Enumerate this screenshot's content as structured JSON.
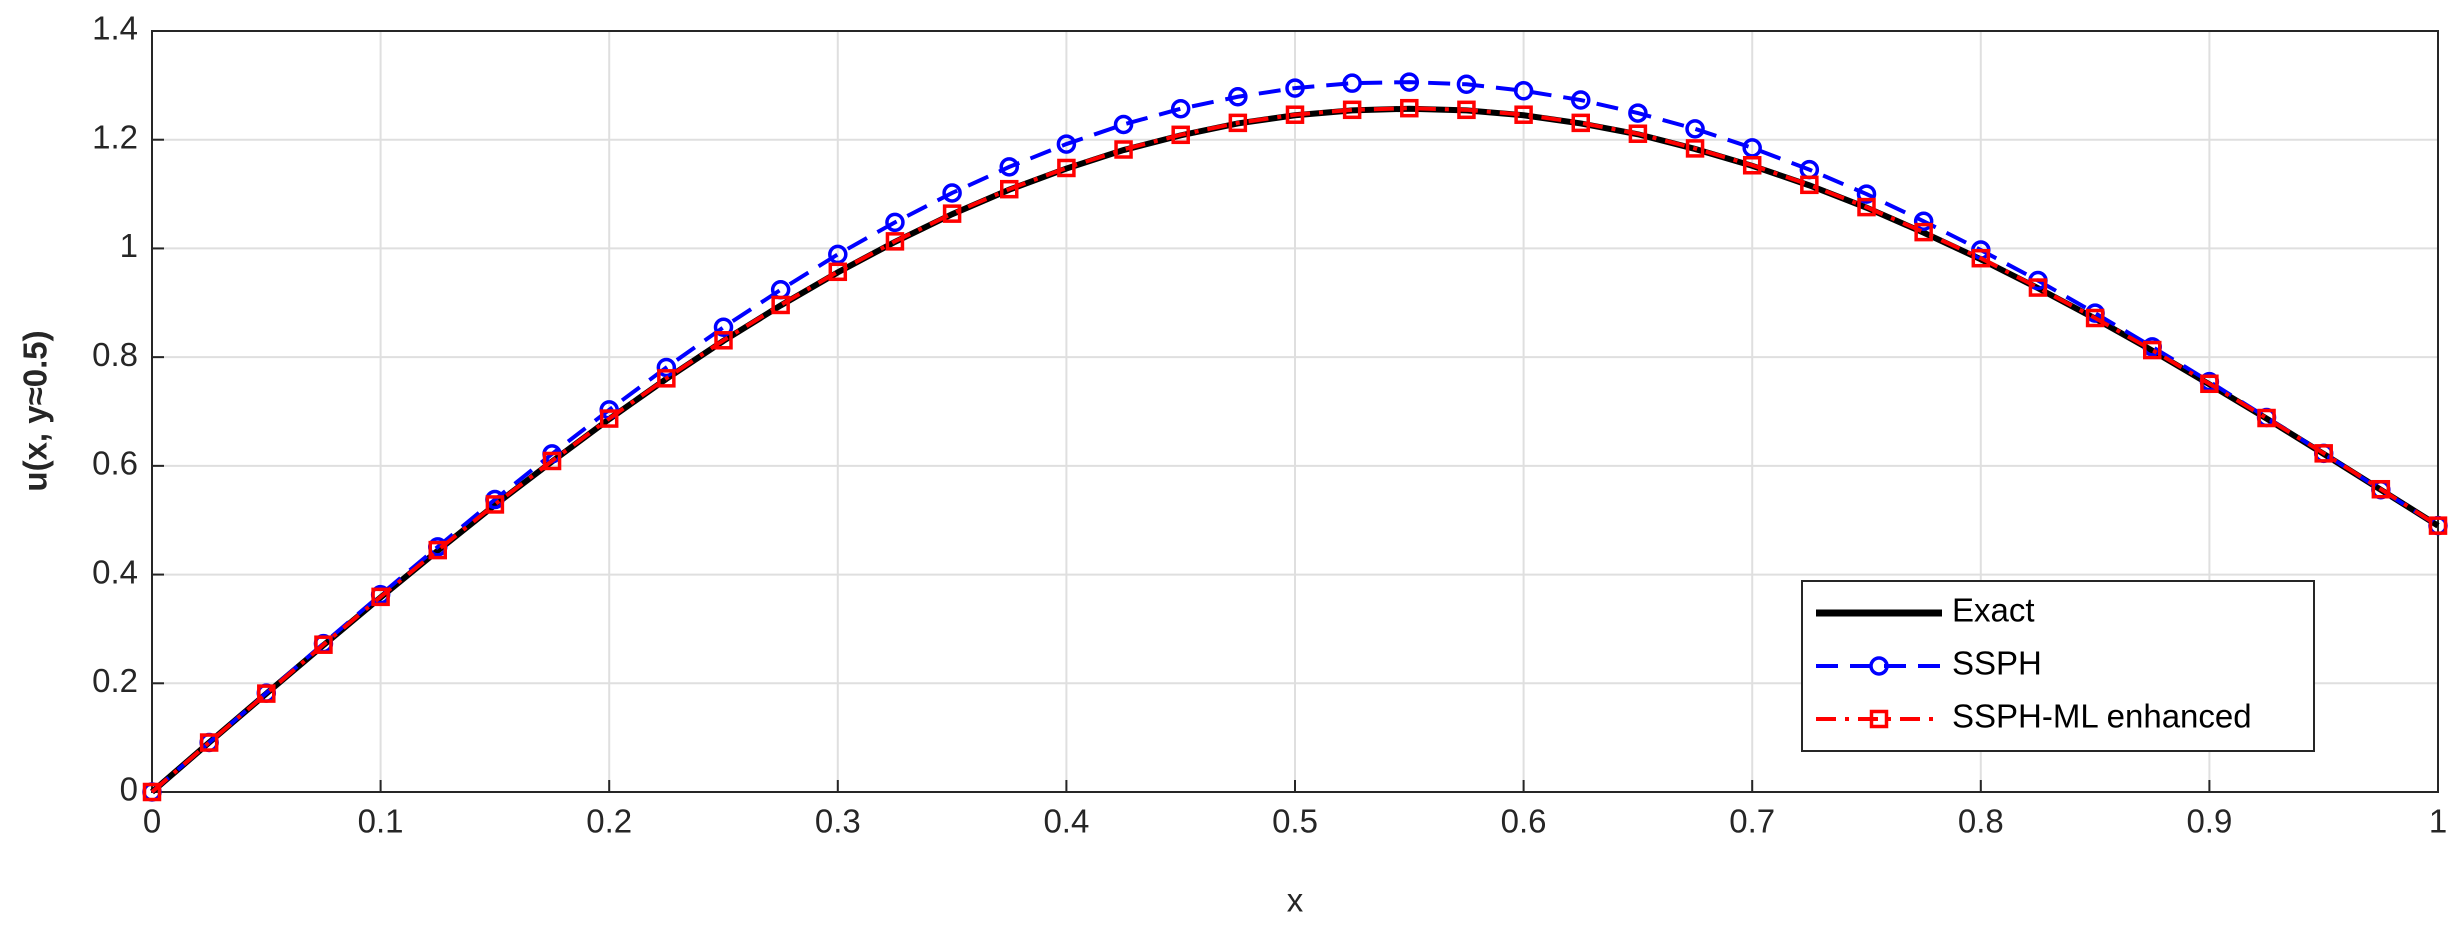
{
  "chart_data": {
    "type": "line",
    "xlabel": "x",
    "ylabel": "u(x, y≈0.5)",
    "x": [
      0,
      0.025,
      0.05,
      0.075,
      0.1,
      0.125,
      0.15,
      0.175,
      0.2,
      0.225,
      0.25,
      0.275,
      0.3,
      0.325,
      0.35,
      0.375,
      0.4,
      0.425,
      0.45,
      0.475,
      0.5,
      0.525,
      0.55,
      0.575,
      0.6,
      0.625,
      0.65,
      0.675,
      0.7,
      0.725,
      0.75,
      0.775,
      0.8,
      0.825,
      0.85,
      0.875,
      0.9,
      0.925,
      0.95,
      0.975,
      1
    ],
    "series": [
      {
        "name": "Exact",
        "color": "#000000",
        "style": "solid",
        "marker": "none",
        "values": [
          0,
          0.091,
          0.181,
          0.27,
          0.358,
          0.444,
          0.528,
          0.608,
          0.686,
          0.76,
          0.83,
          0.895,
          0.956,
          1.012,
          1.063,
          1.108,
          1.147,
          1.181,
          1.208,
          1.23,
          1.245,
          1.254,
          1.257,
          1.254,
          1.245,
          1.23,
          1.21,
          1.183,
          1.152,
          1.116,
          1.075,
          1.029,
          0.98,
          0.927,
          0.871,
          0.812,
          0.75,
          0.687,
          0.622,
          0.556,
          0.49
        ]
      },
      {
        "name": "SSPH",
        "color": "#0000ff",
        "style": "dashed",
        "marker": "circle",
        "values": [
          0,
          0.091,
          0.182,
          0.273,
          0.363,
          0.451,
          0.538,
          0.622,
          0.703,
          0.781,
          0.855,
          0.924,
          0.989,
          1.048,
          1.102,
          1.15,
          1.192,
          1.228,
          1.257,
          1.279,
          1.295,
          1.304,
          1.306,
          1.302,
          1.29,
          1.273,
          1.249,
          1.22,
          1.185,
          1.145,
          1.1,
          1.05,
          0.997,
          0.941,
          0.881,
          0.819,
          0.755,
          0.689,
          0.623,
          0.556,
          0.49
        ]
      },
      {
        "name": "SSPH-ML enhanced",
        "color": "#ff0000",
        "style": "dashdot",
        "marker": "square",
        "values": [
          0,
          0.091,
          0.181,
          0.271,
          0.359,
          0.445,
          0.529,
          0.609,
          0.687,
          0.761,
          0.831,
          0.896,
          0.957,
          1.013,
          1.064,
          1.109,
          1.148,
          1.182,
          1.209,
          1.231,
          1.246,
          1.255,
          1.258,
          1.255,
          1.246,
          1.231,
          1.211,
          1.184,
          1.153,
          1.117,
          1.076,
          1.03,
          0.982,
          0.928,
          0.872,
          0.813,
          0.751,
          0.688,
          0.623,
          0.557,
          0.49
        ]
      }
    ],
    "xlim": [
      0,
      1
    ],
    "xticks": [
      0,
      0.1,
      0.2,
      0.3,
      0.4,
      0.5,
      0.6,
      0.7,
      0.8,
      0.9,
      1
    ],
    "ylim": [
      0,
      1.4
    ],
    "yticks": [
      0,
      0.2,
      0.4,
      0.6,
      0.8,
      1,
      1.2,
      1.4
    ],
    "grid": true,
    "legend": "lower right"
  }
}
